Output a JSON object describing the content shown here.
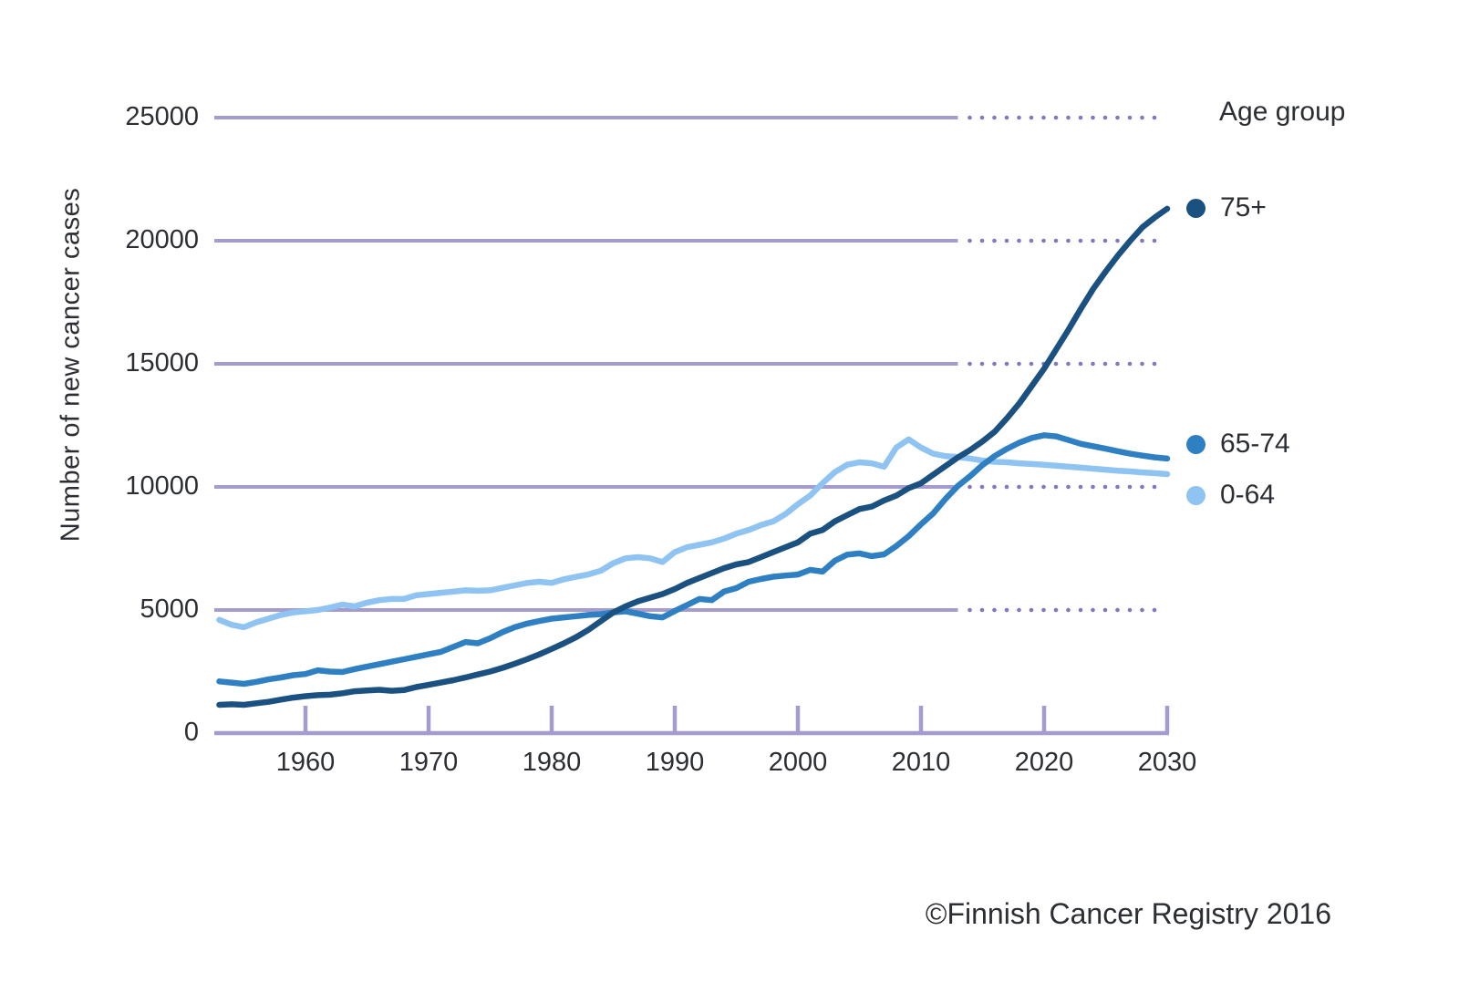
{
  "chart_data": {
    "type": "line",
    "title": "",
    "xlabel": "",
    "ylabel": "Number of new cancer cases",
    "legend_title": "Age group",
    "legend_position": "right",
    "footer": "©Finnish Cancer Registry 2016",
    "xlim": [
      1952.5,
      2030
    ],
    "ylim": [
      0,
      25000
    ],
    "x_ticks": [
      1960,
      1970,
      1980,
      1990,
      2000,
      2010,
      2020,
      2030
    ],
    "y_ticks": [
      0,
      5000,
      10000,
      15000,
      20000,
      25000
    ],
    "grid": "horizontal",
    "solid_until_year": 2013,
    "colors": {
      "grid_solid": "#a59bce",
      "grid_dots": "#8377bd",
      "axis": "#a59bce",
      "text": "#2b2e33"
    },
    "years": [
      1953,
      1954,
      1955,
      1956,
      1957,
      1958,
      1959,
      1960,
      1961,
      1962,
      1963,
      1964,
      1965,
      1966,
      1967,
      1968,
      1969,
      1970,
      1971,
      1972,
      1973,
      1974,
      1975,
      1976,
      1977,
      1978,
      1979,
      1980,
      1981,
      1982,
      1983,
      1984,
      1985,
      1986,
      1987,
      1988,
      1989,
      1990,
      1991,
      1992,
      1993,
      1994,
      1995,
      1996,
      1997,
      1998,
      1999,
      2000,
      2001,
      2002,
      2003,
      2004,
      2005,
      2006,
      2007,
      2008,
      2009,
      2010,
      2011,
      2012,
      2013,
      2014,
      2015,
      2016,
      2017,
      2018,
      2019,
      2020,
      2021,
      2022,
      2023,
      2024,
      2025,
      2026,
      2027,
      2028,
      2029,
      2030
    ],
    "series": [
      {
        "name": "75+",
        "color": "#1b5180",
        "values": [
          1150,
          1170,
          1150,
          1210,
          1270,
          1360,
          1440,
          1500,
          1540,
          1560,
          1620,
          1700,
          1730,
          1760,
          1720,
          1750,
          1870,
          1960,
          2050,
          2150,
          2260,
          2380,
          2500,
          2650,
          2820,
          3000,
          3200,
          3420,
          3650,
          3900,
          4200,
          4550,
          4900,
          5150,
          5350,
          5500,
          5650,
          5850,
          6100,
          6300,
          6500,
          6700,
          6850,
          6950,
          7150,
          7350,
          7550,
          7750,
          8100,
          8250,
          8600,
          8850,
          9100,
          9200,
          9450,
          9650,
          9950,
          10150,
          10500,
          10850,
          11200,
          11500,
          11850,
          12250,
          12800,
          13400,
          14100,
          14800,
          15600,
          16400,
          17250,
          18050,
          18750,
          19400,
          20000,
          20550,
          20950,
          21300
        ]
      },
      {
        "name": "65-74",
        "color": "#2f80c3",
        "values": [
          2100,
          2050,
          2000,
          2080,
          2180,
          2260,
          2350,
          2400,
          2550,
          2500,
          2480,
          2600,
          2700,
          2800,
          2900,
          3000,
          3100,
          3200,
          3300,
          3500,
          3700,
          3650,
          3850,
          4100,
          4300,
          4450,
          4550,
          4650,
          4700,
          4750,
          4800,
          4830,
          4900,
          4950,
          4850,
          4750,
          4700,
          4960,
          5200,
          5450,
          5400,
          5750,
          5890,
          6150,
          6260,
          6350,
          6400,
          6440,
          6630,
          6560,
          7000,
          7250,
          7300,
          7190,
          7260,
          7600,
          8000,
          8480,
          8930,
          9520,
          10040,
          10440,
          10890,
          11260,
          11550,
          11800,
          11990,
          12100,
          12050,
          11900,
          11750,
          11650,
          11550,
          11450,
          11350,
          11270,
          11200,
          11150
        ]
      },
      {
        "name": "0-64",
        "color": "#8fc3f2",
        "values": [
          4600,
          4400,
          4300,
          4500,
          4650,
          4800,
          4900,
          4950,
          5000,
          5100,
          5220,
          5150,
          5300,
          5400,
          5450,
          5450,
          5600,
          5650,
          5700,
          5750,
          5800,
          5780,
          5800,
          5900,
          6000,
          6100,
          6150,
          6100,
          6250,
          6350,
          6450,
          6600,
          6900,
          7100,
          7150,
          7100,
          6950,
          7350,
          7550,
          7650,
          7750,
          7900,
          8100,
          8250,
          8450,
          8600,
          8900,
          9300,
          9650,
          10150,
          10600,
          10900,
          11000,
          10960,
          10820,
          11600,
          11930,
          11600,
          11350,
          11250,
          11220,
          11150,
          11070,
          11020,
          11000,
          10960,
          10930,
          10900,
          10860,
          10820,
          10780,
          10740,
          10700,
          10660,
          10630,
          10590,
          10560,
          10520
        ]
      }
    ]
  }
}
